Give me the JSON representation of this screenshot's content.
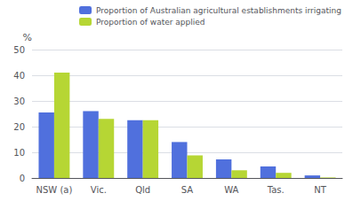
{
  "chart_data": {
    "type": "bar",
    "ylabel": "%",
    "categories": [
      "NSW (a)",
      "Vic.",
      "Qld",
      "SA",
      "WA",
      "Tas.",
      "NT"
    ],
    "series": [
      {
        "name": "Proportion of Australian agricultural establishments irrigating",
        "values": [
          25.5,
          26.0,
          22.5,
          14.0,
          7.2,
          4.5,
          1.0
        ]
      },
      {
        "name": "Proportion of water applied",
        "values": [
          41.0,
          23.0,
          22.5,
          8.8,
          3.0,
          2.0,
          0.2
        ]
      }
    ],
    "ylim": [
      0,
      50
    ],
    "yticks": [
      0,
      10,
      20,
      30,
      40,
      50
    ],
    "grid": true,
    "legend": "upper right"
  }
}
